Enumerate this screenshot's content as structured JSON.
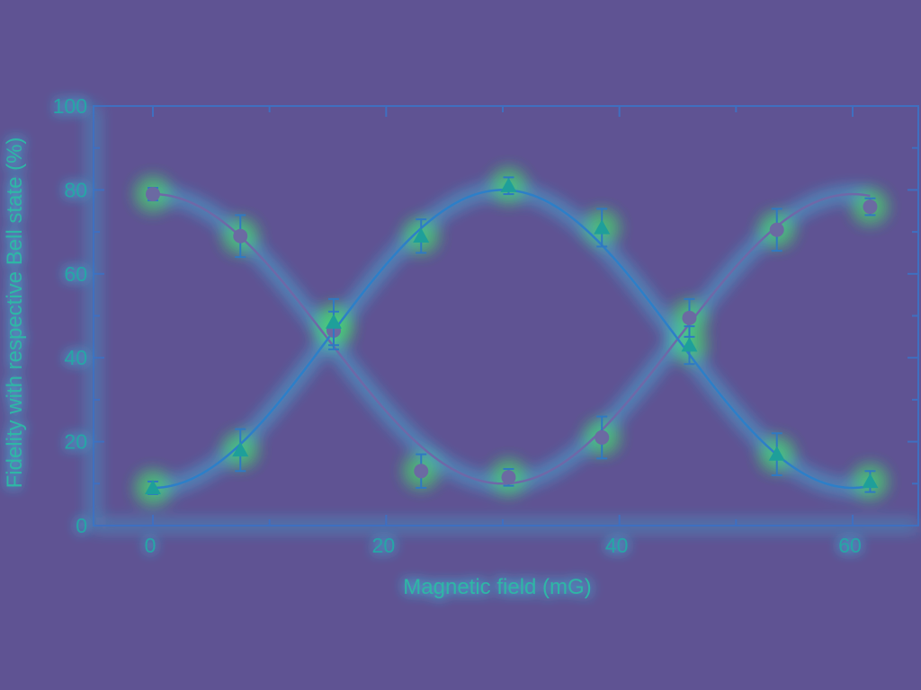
{
  "chart_data": {
    "type": "scatter",
    "title": "",
    "xlabel": "Magnetic field (mG)",
    "ylabel": "Fidelity with respective Bell state (%)",
    "xlim": [
      0,
      66
    ],
    "ylim": [
      0,
      100
    ],
    "xticks": [
      0,
      20,
      40,
      60
    ],
    "yticks": [
      0,
      20,
      40,
      60,
      80,
      100
    ],
    "grid": false,
    "legend": "none",
    "series": [
      {
        "marker": "circle",
        "color": "#6b6aa2",
        "x": [
          0,
          7.5,
          15.5,
          23,
          30.5,
          38.5,
          46,
          53.5,
          61.5
        ],
        "y": [
          79,
          69,
          46.5,
          13,
          11.5,
          21,
          49.5,
          70.5,
          76
        ],
        "err": [
          1.5,
          5,
          4.5,
          4,
          2,
          5,
          4.5,
          5,
          2
        ],
        "fit": {
          "form": "offset_plus_cosine",
          "mean": 44.5,
          "amplitude": 34.5,
          "period_mG": 60,
          "phase_mG": 0
        }
      },
      {
        "marker": "triangle",
        "color": "#1e9f9a",
        "x": [
          0,
          7.5,
          15.5,
          23,
          30.5,
          38.5,
          46,
          53.5,
          61.5
        ],
        "y": [
          9,
          18,
          48.5,
          69,
          81,
          71,
          43,
          17,
          10.5
        ],
        "err": [
          1.5,
          5,
          5.5,
          4,
          2,
          4.5,
          4.5,
          5,
          2.5
        ],
        "fit": {
          "form": "offset_minus_cosine",
          "mean": 44.5,
          "amplitude": 35.5,
          "period_mG": 60,
          "phase_mG": 0
        }
      }
    ]
  },
  "colors": {
    "background": "#5f5393",
    "axis": "#3f6fc0",
    "glow": "#3fd0f0",
    "tick_label": "#27a6a6"
  }
}
